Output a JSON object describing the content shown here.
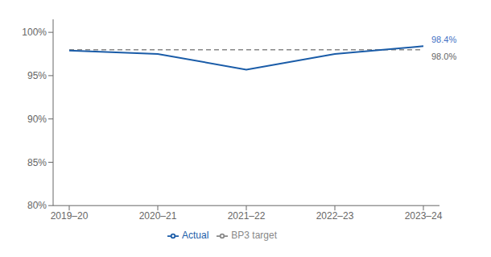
{
  "chart_data": {
    "type": "line",
    "categories": [
      "2019–20",
      "2020–21",
      "2021–22",
      "2022–23",
      "2023–24"
    ],
    "series": [
      {
        "name": "BP3 target",
        "color": "#888888",
        "line_style": "dashed",
        "values": [
          98.0,
          98.0,
          98.0,
          98.0,
          98.0
        ]
      },
      {
        "name": "Actual",
        "color": "#1a5ca8",
        "line_style": "solid",
        "values": [
          97.9,
          97.5,
          95.7,
          97.5,
          98.4
        ]
      }
    ],
    "ylim": [
      80,
      101.5
    ],
    "yticks": [
      {
        "value": 80,
        "label": "80%"
      },
      {
        "value": 85,
        "label": "85%"
      },
      {
        "value": 90,
        "label": "90%"
      },
      {
        "value": 95,
        "label": "95%"
      },
      {
        "value": 100,
        "label": "100%"
      }
    ],
    "annotations": [
      {
        "text": "98.4%",
        "x": "2023–24",
        "y": 98.4,
        "color": "#4472c4"
      },
      {
        "text": "98.0%",
        "x": "2023–24",
        "y": 98.0,
        "color": "#666666"
      }
    ],
    "grid": false,
    "legend": "bottom"
  }
}
